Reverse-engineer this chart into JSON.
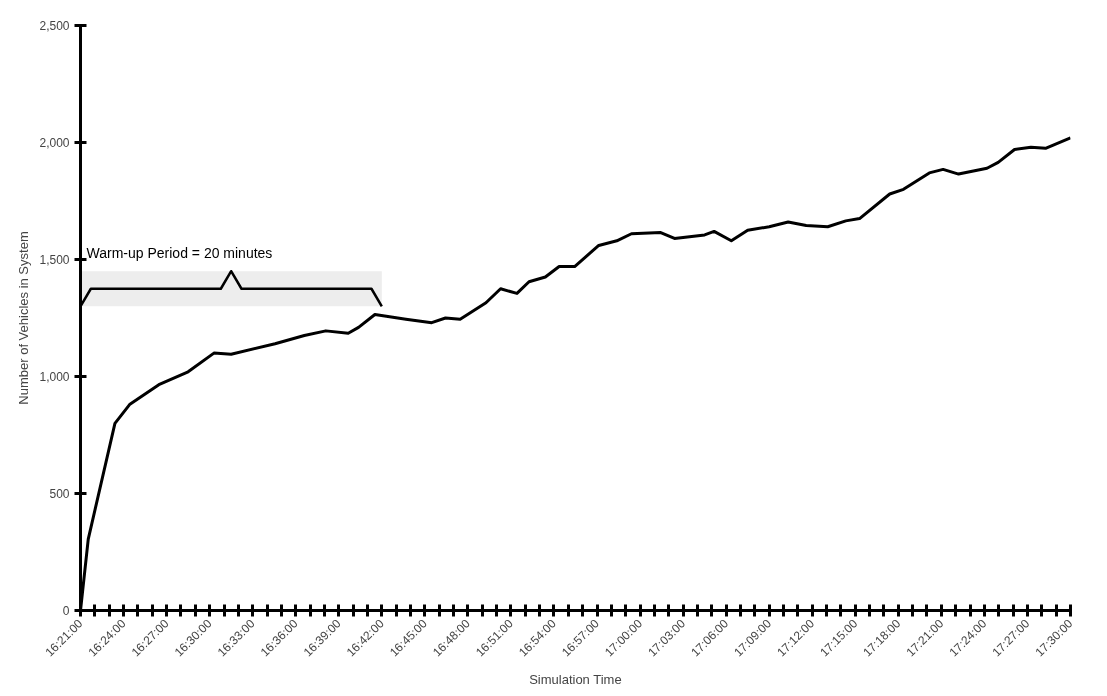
{
  "chart_data": {
    "type": "line",
    "xlabel": "Simulation Time",
    "ylabel": "Number of Vehicles in System",
    "x": [
      16.35,
      16.359,
      16.39,
      16.407,
      16.441,
      16.475,
      16.505,
      16.525,
      16.576,
      16.61,
      16.635,
      16.661,
      16.673,
      16.692,
      16.728,
      16.758,
      16.774,
      16.791,
      16.821,
      16.838,
      16.857,
      16.871,
      16.89,
      16.906,
      16.924,
      16.952,
      16.973,
      16.99,
      17.024,
      17.04,
      17.075,
      17.086,
      17.106,
      17.125,
      17.15,
      17.172,
      17.193,
      17.218,
      17.239,
      17.255,
      17.29,
      17.306,
      17.336,
      17.352,
      17.37,
      17.403,
      17.416,
      17.435,
      17.454,
      17.471,
      17.5
    ],
    "series": [
      {
        "color": "#000000",
        "values": [
          0,
          305,
          800,
          880,
          965,
          1020,
          1100,
          1095,
          1140,
          1175,
          1195,
          1185,
          1210,
          1265,
          1245,
          1230,
          1250,
          1245,
          1315,
          1375,
          1355,
          1405,
          1425,
          1470,
          1470,
          1560,
          1580,
          1610,
          1615,
          1590,
          1605,
          1620,
          1580,
          1625,
          1640,
          1660,
          1645,
          1640,
          1665,
          1675,
          1780,
          1800,
          1870,
          1885,
          1865,
          1890,
          1915,
          1970,
          1980,
          1975,
          2020
        ]
      }
    ],
    "xlim": [
      16.35,
      17.5
    ],
    "xticks": [
      {
        "value": 16.35,
        "label": "16:21:00"
      },
      {
        "value": 16.3667,
        "label": null
      },
      {
        "value": 16.3833,
        "label": null
      },
      {
        "value": 16.4,
        "label": "16:24:00"
      },
      {
        "value": 16.4167,
        "label": null
      },
      {
        "value": 16.4333,
        "label": null
      },
      {
        "value": 16.45,
        "label": "16:27:00"
      },
      {
        "value": 16.4667,
        "label": null
      },
      {
        "value": 16.4833,
        "label": null
      },
      {
        "value": 16.5,
        "label": "16:30:00"
      },
      {
        "value": 16.5167,
        "label": null
      },
      {
        "value": 16.5333,
        "label": null
      },
      {
        "value": 16.55,
        "label": "16:33:00"
      },
      {
        "value": 16.5667,
        "label": null
      },
      {
        "value": 16.5833,
        "label": null
      },
      {
        "value": 16.6,
        "label": "16:36:00"
      },
      {
        "value": 16.6167,
        "label": null
      },
      {
        "value": 16.6333,
        "label": null
      },
      {
        "value": 16.65,
        "label": "16:39:00"
      },
      {
        "value": 16.6667,
        "label": null
      },
      {
        "value": 16.6833,
        "label": null
      },
      {
        "value": 16.7,
        "label": "16:42:00"
      },
      {
        "value": 16.7167,
        "label": null
      },
      {
        "value": 16.7333,
        "label": null
      },
      {
        "value": 16.75,
        "label": "16:45:00"
      },
      {
        "value": 16.7667,
        "label": null
      },
      {
        "value": 16.7833,
        "label": null
      },
      {
        "value": 16.8,
        "label": "16:48:00"
      },
      {
        "value": 16.8167,
        "label": null
      },
      {
        "value": 16.8333,
        "label": null
      },
      {
        "value": 16.85,
        "label": "16:51:00"
      },
      {
        "value": 16.8667,
        "label": null
      },
      {
        "value": 16.8833,
        "label": null
      },
      {
        "value": 16.9,
        "label": "16:54:00"
      },
      {
        "value": 16.9167,
        "label": null
      },
      {
        "value": 16.9333,
        "label": null
      },
      {
        "value": 16.95,
        "label": "16:57:00"
      },
      {
        "value": 16.9667,
        "label": null
      },
      {
        "value": 16.9833,
        "label": null
      },
      {
        "value": 17.0,
        "label": "17:00:00"
      },
      {
        "value": 17.0167,
        "label": null
      },
      {
        "value": 17.0333,
        "label": null
      },
      {
        "value": 17.05,
        "label": "17:03:00"
      },
      {
        "value": 17.0667,
        "label": null
      },
      {
        "value": 17.0833,
        "label": null
      },
      {
        "value": 17.1,
        "label": "17:06:00"
      },
      {
        "value": 17.1167,
        "label": null
      },
      {
        "value": 17.1333,
        "label": null
      },
      {
        "value": 17.15,
        "label": "17:09:00"
      },
      {
        "value": 17.1667,
        "label": null
      },
      {
        "value": 17.1833,
        "label": null
      },
      {
        "value": 17.2,
        "label": "17:12:00"
      },
      {
        "value": 17.2167,
        "label": null
      },
      {
        "value": 17.2333,
        "label": null
      },
      {
        "value": 17.25,
        "label": "17:15:00"
      },
      {
        "value": 17.2667,
        "label": null
      },
      {
        "value": 17.2833,
        "label": null
      },
      {
        "value": 17.3,
        "label": "17:18:00"
      },
      {
        "value": 17.3167,
        "label": null
      },
      {
        "value": 17.3333,
        "label": null
      },
      {
        "value": 17.35,
        "label": "17:21:00"
      },
      {
        "value": 17.3667,
        "label": null
      },
      {
        "value": 17.3833,
        "label": null
      },
      {
        "value": 17.4,
        "label": "17:24:00"
      },
      {
        "value": 17.4167,
        "label": null
      },
      {
        "value": 17.4333,
        "label": null
      },
      {
        "value": 17.45,
        "label": "17:27:00"
      },
      {
        "value": 17.4667,
        "label": null
      },
      {
        "value": 17.4833,
        "label": null
      },
      {
        "value": 17.5,
        "label": "17:30:00"
      }
    ],
    "ylim": [
      0,
      2500
    ],
    "yticks": [
      0,
      {
        "value": 500,
        "label": "500"
      },
      {
        "value": 1000,
        "label": "1,000"
      },
      {
        "value": 1500,
        "label": "1,500"
      },
      {
        "value": 2000,
        "label": "2,000"
      },
      {
        "value": 2500,
        "label": "2,500"
      }
    ],
    "bands": [
      {
        "axis": "x",
        "from": 16.35,
        "to": 16.7,
        "label": "Warm-up Period = 20 minutes",
        "color": "#ededed"
      }
    ],
    "grid": false,
    "line_style": "solid"
  }
}
